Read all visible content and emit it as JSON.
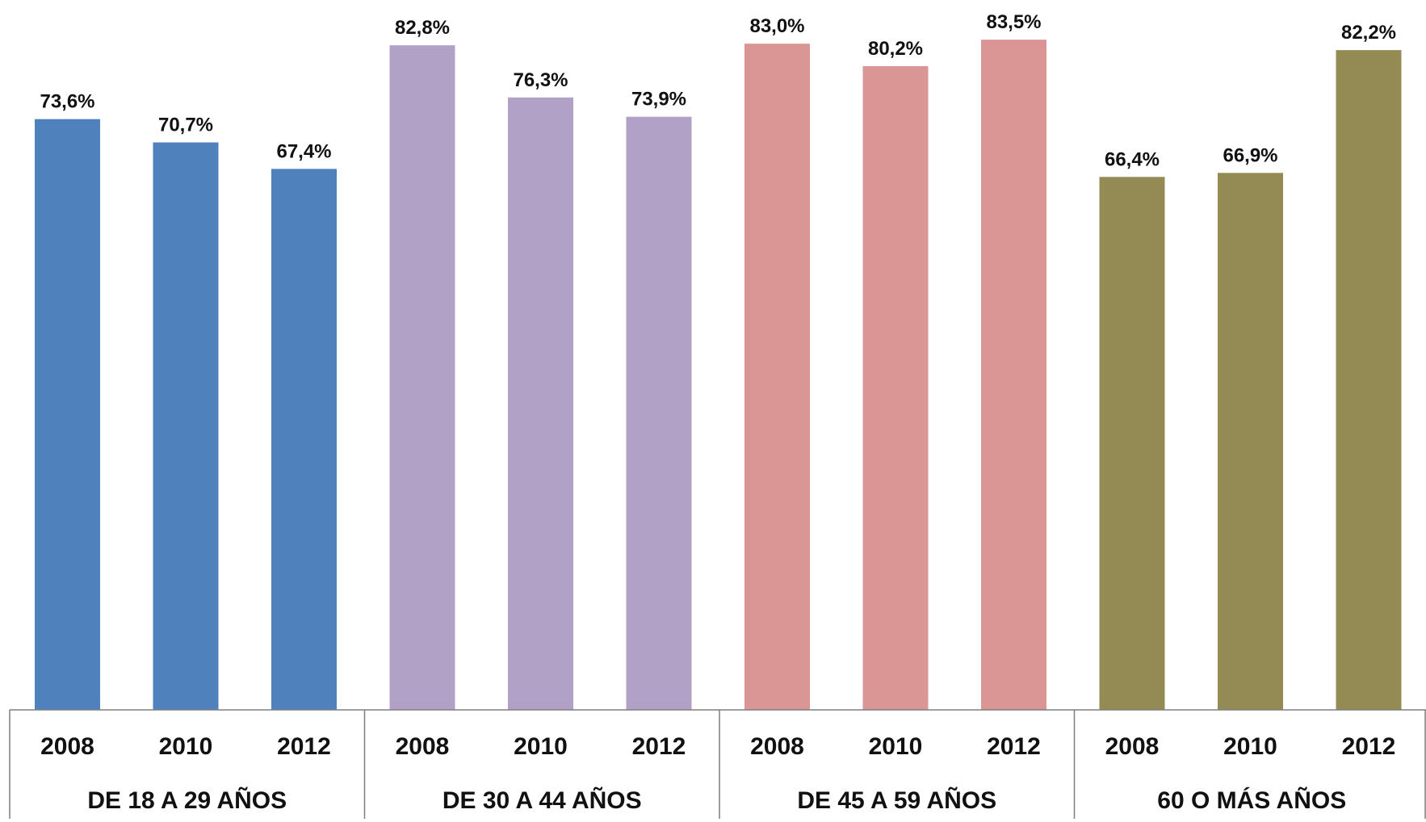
{
  "chart_data": {
    "type": "bar",
    "title": "",
    "xlabel": "",
    "ylabel": "",
    "ylim": [
      0,
      86
    ],
    "grid": false,
    "legend": "none",
    "groups": [
      {
        "label": "DE 18 A 29 AÑOS",
        "color": "#4f81bd",
        "categories": [
          "2008",
          "2010",
          "2012"
        ],
        "values": [
          73.6,
          70.7,
          67.4
        ],
        "value_labels": [
          "73,6%",
          "70,7%",
          "67,4%"
        ]
      },
      {
        "label": "DE 30 A 44 AÑOS",
        "color": "#b2a1c7",
        "categories": [
          "2008",
          "2010",
          "2012"
        ],
        "values": [
          82.8,
          76.3,
          73.9
        ],
        "value_labels": [
          "82,8%",
          "76,3%",
          "73,9%"
        ]
      },
      {
        "label": "DE 45 A 59 AÑOS",
        "color": "#d99694",
        "categories": [
          "2008",
          "2010",
          "2012"
        ],
        "values": [
          83.0,
          80.2,
          83.5
        ],
        "value_labels": [
          "83,0%",
          "80,2%",
          "83,5%"
        ]
      },
      {
        "label": "60 O MÁS AÑOS",
        "color": "#948a54",
        "categories": [
          "2008",
          "2010",
          "2012"
        ],
        "values": [
          66.4,
          66.9,
          82.2
        ],
        "value_labels": [
          "66,4%",
          "66,9%",
          "82,2%"
        ]
      }
    ]
  }
}
